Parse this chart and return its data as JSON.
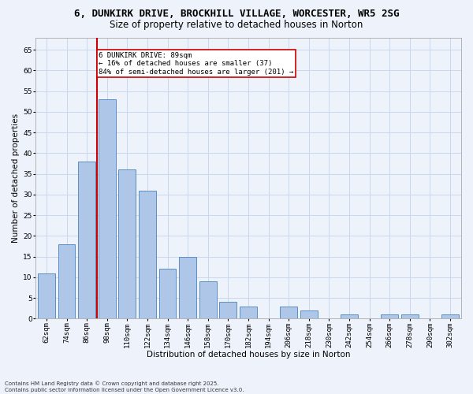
{
  "title1": "6, DUNKIRK DRIVE, BROCKHILL VILLAGE, WORCESTER, WR5 2SG",
  "title2": "Size of property relative to detached houses in Norton",
  "xlabel": "Distribution of detached houses by size in Norton",
  "ylabel": "Number of detached properties",
  "categories": [
    "62sqm",
    "74sqm",
    "86sqm",
    "98sqm",
    "110sqm",
    "122sqm",
    "134sqm",
    "146sqm",
    "158sqm",
    "170sqm",
    "182sqm",
    "194sqm",
    "206sqm",
    "218sqm",
    "230sqm",
    "242sqm",
    "254sqm",
    "266sqm",
    "278sqm",
    "290sqm",
    "302sqm"
  ],
  "values": [
    11,
    18,
    38,
    53,
    36,
    31,
    12,
    15,
    9,
    4,
    3,
    0,
    3,
    2,
    0,
    1,
    0,
    1,
    1,
    0,
    1
  ],
  "bar_color": "#aec6e8",
  "bar_edge_color": "#5a8fc3",
  "grid_color": "#c8d8ee",
  "background_color": "#eef3fb",
  "vline_color": "#cc0000",
  "vline_x_index": 2,
  "annotation_text": "6 DUNKIRK DRIVE: 89sqm\n← 16% of detached houses are smaller (37)\n84% of semi-detached houses are larger (201) →",
  "annotation_box_color": "#ffffff",
  "annotation_box_edge": "#cc0000",
  "ylim": [
    0,
    68
  ],
  "yticks": [
    0,
    5,
    10,
    15,
    20,
    25,
    30,
    35,
    40,
    45,
    50,
    55,
    60,
    65
  ],
  "footer1": "Contains HM Land Registry data © Crown copyright and database right 2025.",
  "footer2": "Contains public sector information licensed under the Open Government Licence v3.0.",
  "title1_fontsize": 9,
  "title2_fontsize": 8.5,
  "tick_fontsize": 6.5,
  "ylabel_fontsize": 7.5,
  "xlabel_fontsize": 7.5,
  "annotation_fontsize": 6.5,
  "footer_fontsize": 5
}
